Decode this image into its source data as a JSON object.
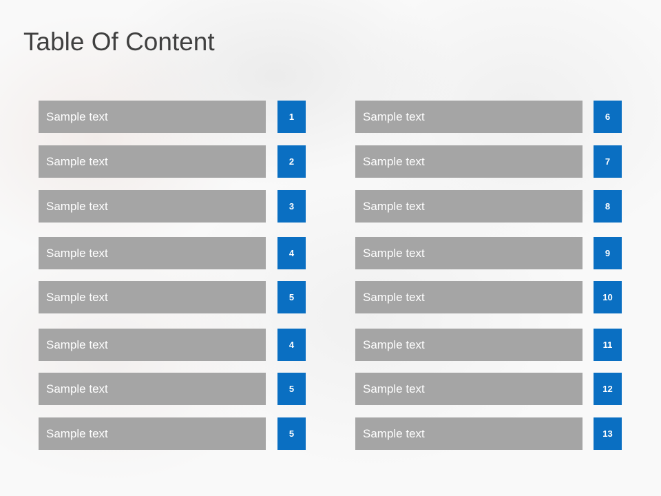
{
  "title": "Table Of Content",
  "columns": [
    {
      "items": [
        {
          "text": "Sample text",
          "number": "1"
        },
        {
          "text": "Sample text",
          "number": "2"
        },
        {
          "text": "Sample text",
          "number": "3"
        },
        {
          "text": "Sample text",
          "number": "4"
        },
        {
          "text": "Sample text",
          "number": "5"
        },
        {
          "text": "Sample text",
          "number": "4"
        },
        {
          "text": "Sample text",
          "number": "5"
        },
        {
          "text": "Sample text",
          "number": "5"
        }
      ]
    },
    {
      "items": [
        {
          "text": "Sample text",
          "number": "6"
        },
        {
          "text": "Sample text",
          "number": "7"
        },
        {
          "text": "Sample text",
          "number": "8"
        },
        {
          "text": "Sample text",
          "number": "9"
        },
        {
          "text": "Sample text",
          "number": "10"
        },
        {
          "text": "Sample text",
          "number": "11"
        },
        {
          "text": "Sample text",
          "number": "12"
        },
        {
          "text": "Sample text",
          "number": "13"
        }
      ]
    }
  ]
}
